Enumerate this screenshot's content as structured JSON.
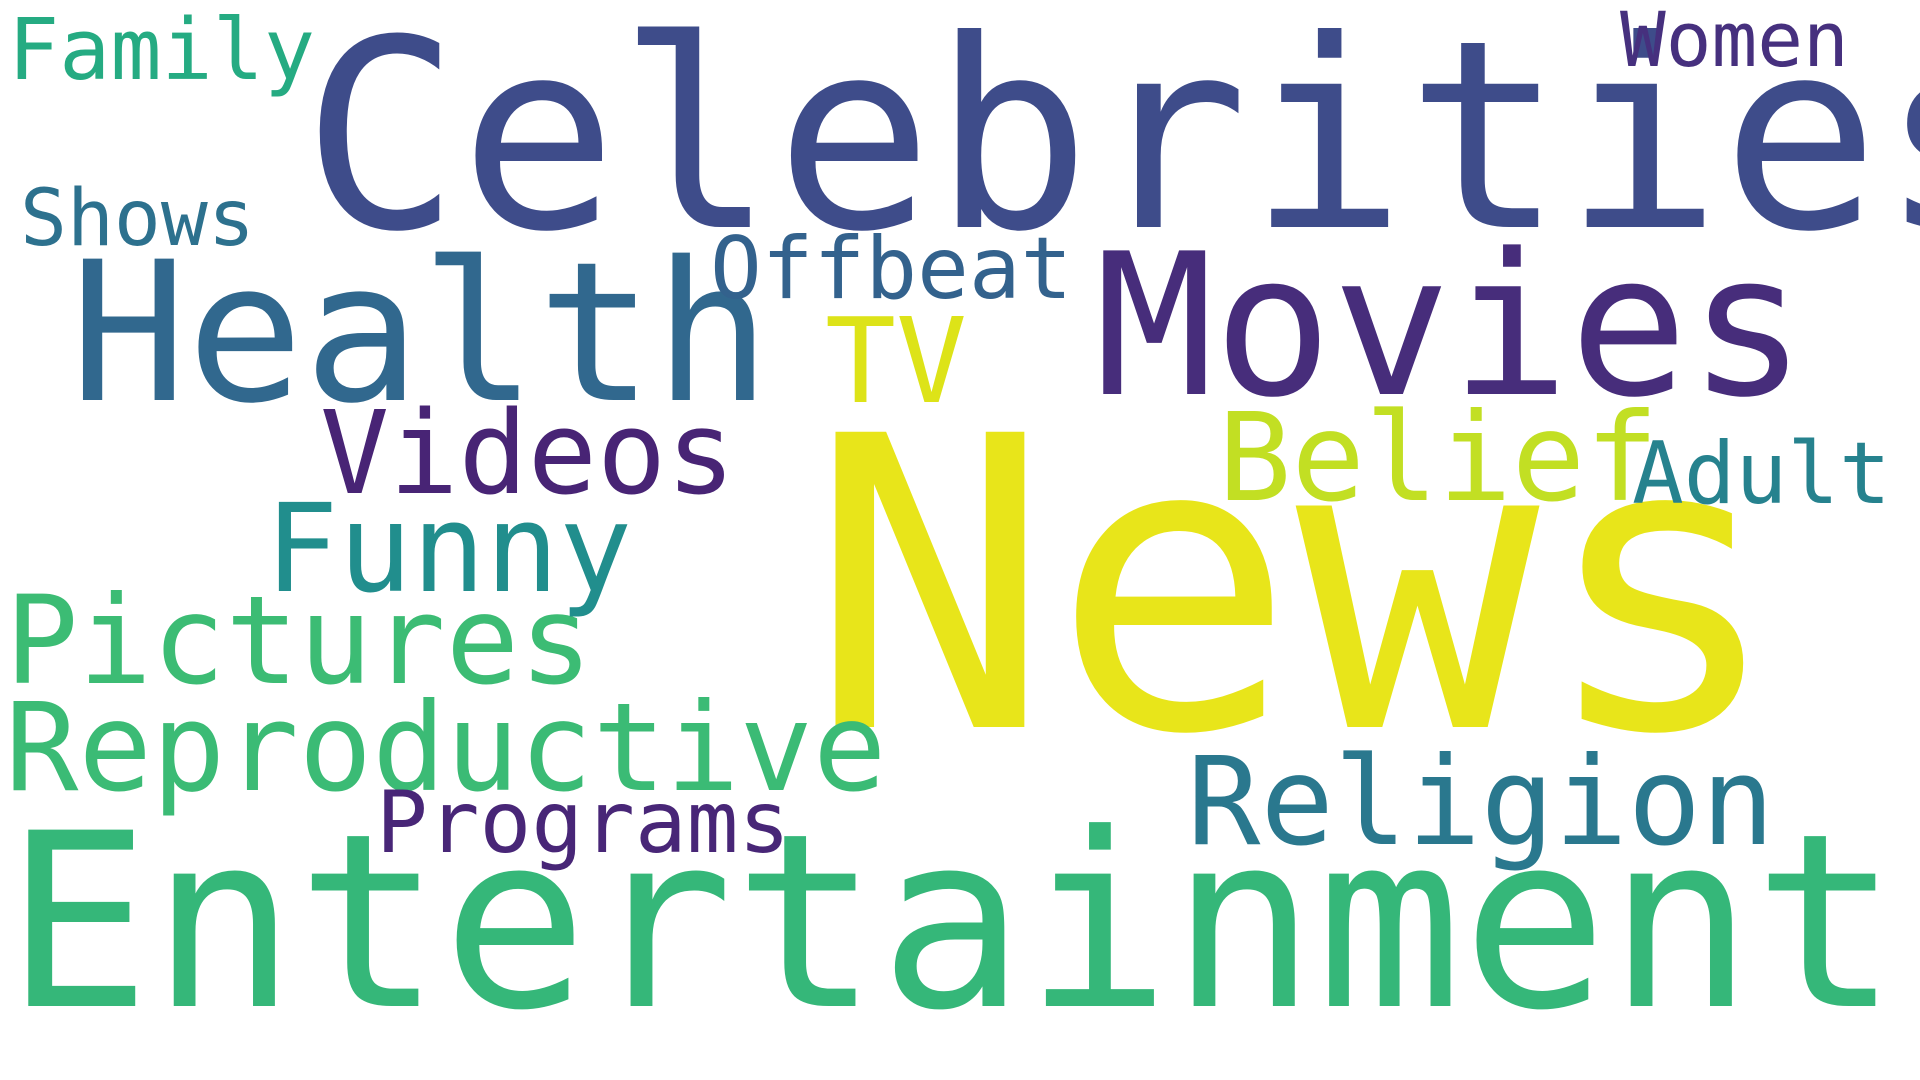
{
  "words": {
    "celebrities": {
      "text": "Celebrities",
      "color": "#3e4c8a"
    },
    "news": {
      "text": "News",
      "color": "#e8e51a"
    },
    "entertainment": {
      "text": "Entertainment",
      "color": "#35b779"
    },
    "movies": {
      "text": "Movies",
      "color": "#472d7b"
    },
    "health": {
      "text": "Health",
      "color": "#31688e"
    },
    "reproductive": {
      "text": "Reproductive",
      "color": "#3bbb75"
    },
    "religion": {
      "text": "Religion",
      "color": "#2a788e"
    },
    "pictures": {
      "text": "Pictures",
      "color": "#3cbc74"
    },
    "belief": {
      "text": "Belief",
      "color": "#c2df23"
    },
    "funny": {
      "text": "Funny",
      "color": "#218e8d"
    },
    "videos": {
      "text": "Videos",
      "color": "#482475"
    },
    "tv": {
      "text": "TV",
      "color": "#dde318"
    },
    "adult": {
      "text": "Adult",
      "color": "#26828e"
    },
    "offbeat": {
      "text": "Offbeat",
      "color": "#33628d"
    },
    "programs": {
      "text": "Programs",
      "color": "#482677"
    },
    "shows": {
      "text": "Shows",
      "color": "#2d718e"
    },
    "family": {
      "text": "Family",
      "color": "#25ab82"
    },
    "women": {
      "text": "Women",
      "color": "#46307e"
    }
  }
}
